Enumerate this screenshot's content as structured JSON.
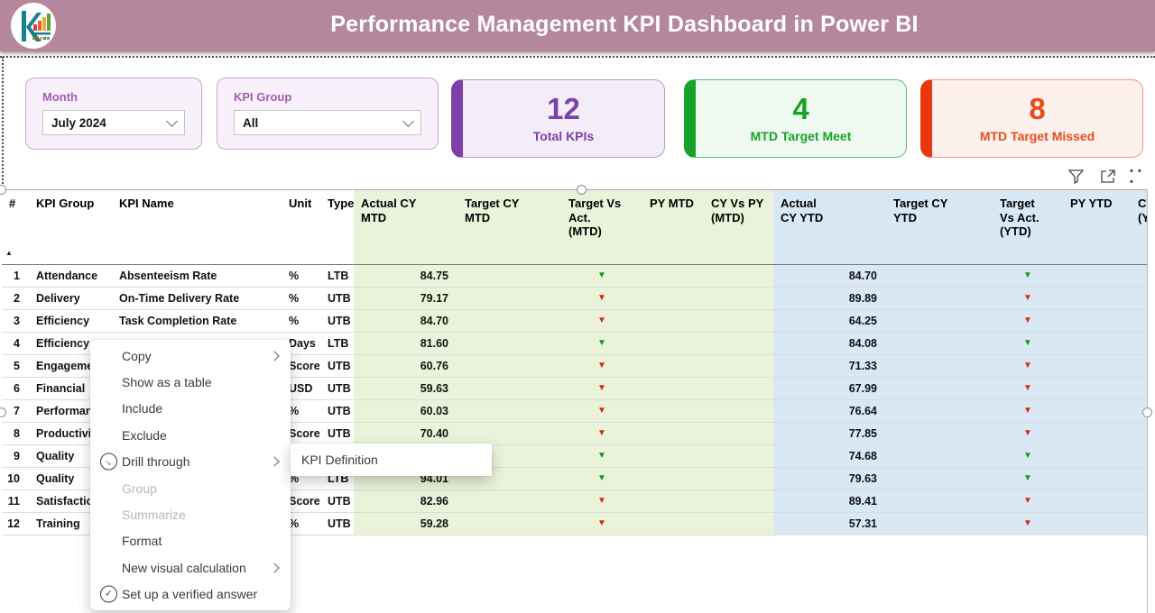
{
  "header": {
    "title": "Performance Management KPI Dashboard in Power BI"
  },
  "slicers": {
    "month": {
      "label": "Month",
      "value": "July 2024"
    },
    "kpi_group": {
      "label": "KPI Group",
      "value": "All"
    }
  },
  "kpi_cards": [
    {
      "value": "12",
      "label": "Total KPIs",
      "accent": "#7d3fa8",
      "bg": "#f3ecf9",
      "border": "#b79cd1",
      "text": "#7d3fa8"
    },
    {
      "value": "4",
      "label": "MTD Target Meet",
      "accent": "#17a327",
      "bg": "#eefaf0",
      "border": "#5fc16c",
      "text": "#17a327"
    },
    {
      "value": "8",
      "label": "MTD Target Missed",
      "accent": "#e8380d",
      "bg": "#fdf1ed",
      "border": "#f2957d",
      "text": "#e84c1b"
    }
  ],
  "visual_header": {
    "icons": [
      "filter-icon",
      "focus-mode-icon",
      "more-options-icon"
    ]
  },
  "icons": {
    "sort_ascending": "▲",
    "down_triangle": "▼",
    "drill_through": "→",
    "verified_answer": "✓",
    "more_options": "• • •"
  },
  "colors": {
    "header_bg": "#b4879d",
    "green_col": "#eaf3da",
    "blue_col": "#d9e8f5",
    "tri_green": "#149c14",
    "tri_red": "#d62b10"
  },
  "table": {
    "columns": [
      "#",
      "KPI Group",
      "KPI Name",
      "Unit",
      "Type",
      "Actual CY\nMTD",
      "Target CY\nMTD",
      "Target Vs\nAct.\n(MTD)",
      "PY MTD",
      "CY Vs PY\n(MTD)",
      "Actual\nCY YTD",
      "Target CY\nYTD",
      "Target\nVs Act.\n(YTD)",
      "PY YTD",
      "CY Vs PY\n(YTD)"
    ],
    "rows": [
      {
        "n": "1",
        "group": "Attendance",
        "name": "Absenteeism Rate",
        "unit": "%",
        "type": "LTB",
        "actual_mtd": "84.75",
        "target_mtd": "",
        "tvsa_mtd": "green",
        "py_mtd": "",
        "cyvspy_mtd": "",
        "actual_ytd": "84.70",
        "target_ytd": "",
        "tvsa_ytd": "green",
        "py_ytd": "",
        "cyvspy_ytd": ""
      },
      {
        "n": "2",
        "group": "Delivery",
        "name": "On-Time Delivery Rate",
        "unit": "%",
        "type": "UTB",
        "actual_mtd": "79.17",
        "target_mtd": "",
        "tvsa_mtd": "red",
        "py_mtd": "",
        "cyvspy_mtd": "",
        "actual_ytd": "89.89",
        "target_ytd": "",
        "tvsa_ytd": "red",
        "py_ytd": "",
        "cyvspy_ytd": ""
      },
      {
        "n": "3",
        "group": "Efficiency",
        "name": "Task Completion Rate",
        "unit": "%",
        "type": "UTB",
        "actual_mtd": "84.70",
        "target_mtd": "",
        "tvsa_mtd": "red",
        "py_mtd": "",
        "cyvspy_mtd": "",
        "actual_ytd": "64.25",
        "target_ytd": "",
        "tvsa_ytd": "red",
        "py_ytd": "",
        "cyvspy_ytd": ""
      },
      {
        "n": "4",
        "group": "Efficiency",
        "name": "",
        "unit": "Days",
        "type": "LTB",
        "actual_mtd": "81.60",
        "target_mtd": "",
        "tvsa_mtd": "green",
        "py_mtd": "",
        "cyvspy_mtd": "",
        "actual_ytd": "84.08",
        "target_ytd": "",
        "tvsa_ytd": "green",
        "py_ytd": "",
        "cyvspy_ytd": ""
      },
      {
        "n": "5",
        "group": "Engagement",
        "name": "",
        "unit": "Score",
        "type": "UTB",
        "actual_mtd": "60.76",
        "target_mtd": "",
        "tvsa_mtd": "red",
        "py_mtd": "",
        "cyvspy_mtd": "",
        "actual_ytd": "71.33",
        "target_ytd": "",
        "tvsa_ytd": "red",
        "py_ytd": "",
        "cyvspy_ytd": ""
      },
      {
        "n": "6",
        "group": "Financial",
        "name": "",
        "unit": "USD",
        "type": "UTB",
        "actual_mtd": "59.63",
        "target_mtd": "",
        "tvsa_mtd": "red",
        "py_mtd": "",
        "cyvspy_mtd": "",
        "actual_ytd": "67.99",
        "target_ytd": "",
        "tvsa_ytd": "red",
        "py_ytd": "",
        "cyvspy_ytd": ""
      },
      {
        "n": "7",
        "group": "Performance",
        "name": "",
        "unit": "%",
        "type": "UTB",
        "actual_mtd": "60.03",
        "target_mtd": "",
        "tvsa_mtd": "red",
        "py_mtd": "",
        "cyvspy_mtd": "",
        "actual_ytd": "76.64",
        "target_ytd": "",
        "tvsa_ytd": "red",
        "py_ytd": "",
        "cyvspy_ytd": ""
      },
      {
        "n": "8",
        "group": "Productivity",
        "name": "",
        "unit": "Score",
        "type": "UTB",
        "actual_mtd": "70.40",
        "target_mtd": "",
        "tvsa_mtd": "red",
        "py_mtd": "",
        "cyvspy_mtd": "",
        "actual_ytd": "77.85",
        "target_ytd": "",
        "tvsa_ytd": "red",
        "py_ytd": "",
        "cyvspy_ytd": ""
      },
      {
        "n": "9",
        "group": "Quality",
        "name": "",
        "unit": "",
        "type": "",
        "actual_mtd": "",
        "target_mtd": "",
        "tvsa_mtd": "green",
        "py_mtd": "",
        "cyvspy_mtd": "",
        "actual_ytd": "74.68",
        "target_ytd": "",
        "tvsa_ytd": "green",
        "py_ytd": "",
        "cyvspy_ytd": ""
      },
      {
        "n": "10",
        "group": "Quality",
        "name": "",
        "unit": "%",
        "type": "LTB",
        "actual_mtd": "94.01",
        "target_mtd": "",
        "tvsa_mtd": "green",
        "py_mtd": "",
        "cyvspy_mtd": "",
        "actual_ytd": "79.63",
        "target_ytd": "",
        "tvsa_ytd": "green",
        "py_ytd": "",
        "cyvspy_ytd": ""
      },
      {
        "n": "11",
        "group": "Satisfaction",
        "name": "",
        "unit": "Score",
        "type": "UTB",
        "actual_mtd": "82.96",
        "target_mtd": "",
        "tvsa_mtd": "red",
        "py_mtd": "",
        "cyvspy_mtd": "",
        "actual_ytd": "89.41",
        "target_ytd": "",
        "tvsa_ytd": "red",
        "py_ytd": "",
        "cyvspy_ytd": ""
      },
      {
        "n": "12",
        "group": "Training",
        "name": "",
        "unit": "%",
        "type": "UTB",
        "actual_mtd": "59.28",
        "target_mtd": "",
        "tvsa_mtd": "red",
        "py_mtd": "",
        "cyvspy_mtd": "",
        "actual_ytd": "57.31",
        "target_ytd": "",
        "tvsa_ytd": "red",
        "py_ytd": "",
        "cyvspy_ytd": ""
      }
    ]
  },
  "context_menu": {
    "items": [
      {
        "label": "Copy",
        "chevron": true
      },
      {
        "label": "Show as a table"
      },
      {
        "label": "Include"
      },
      {
        "label": "Exclude"
      },
      {
        "label": "Drill through",
        "icon": "drill-through-icon",
        "chevron": true
      },
      {
        "label": "Group",
        "disabled": true
      },
      {
        "label": "Summarize",
        "disabled": true
      },
      {
        "label": "Format"
      },
      {
        "label": "New visual calculation",
        "chevron": true
      },
      {
        "label": "Set up a verified answer",
        "icon": "verified-answer-icon"
      }
    ],
    "submenu": {
      "label": "KPI Definition"
    }
  }
}
